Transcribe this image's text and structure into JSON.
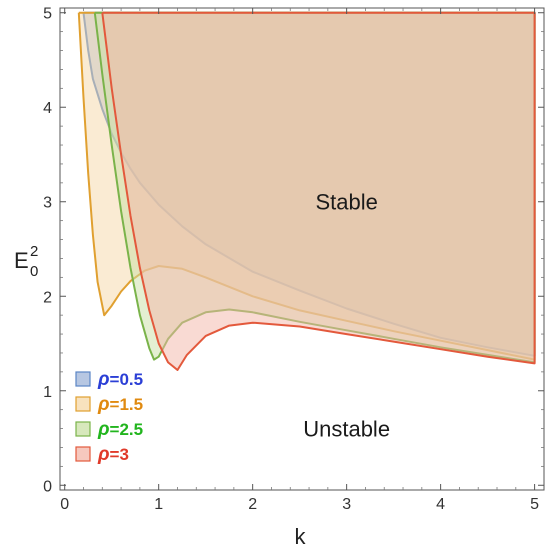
{
  "chart_data": {
    "type": "area",
    "title": "",
    "xlabel": "k",
    "ylabel": "E",
    "ylabel_sub": "0",
    "ylabel_sup": "2",
    "xlim": [
      -0.05,
      5.1
    ],
    "ylim": [
      -0.05,
      5.05
    ],
    "x_ticks": [
      0,
      1,
      2,
      3,
      4,
      5
    ],
    "y_ticks": [
      0,
      1,
      2,
      3,
      4,
      5
    ],
    "grid": false,
    "legend_position": "bottom-left",
    "annotations": [
      {
        "text": "Stable",
        "x": 3.0,
        "y": 3.0
      },
      {
        "text": "Unstable",
        "x": 3.0,
        "y": 0.6
      }
    ],
    "series": [
      {
        "name": "ρ=0.5",
        "legend_symbol": "ρ",
        "legend_value": "=0.5",
        "label_color": "#2b3fd6",
        "line_color": "#5b86c6",
        "fill_color": "#9fb4d8",
        "upper": [
          [
            0.2,
            5.0
          ],
          [
            5.0,
            5.0
          ]
        ],
        "lower": [
          [
            0.2,
            5.0
          ],
          [
            0.25,
            4.6
          ],
          [
            0.3,
            4.3
          ],
          [
            0.4,
            3.98
          ],
          [
            0.5,
            3.72
          ],
          [
            0.6,
            3.52
          ],
          [
            0.7,
            3.35
          ],
          [
            0.8,
            3.2
          ],
          [
            1.0,
            2.97
          ],
          [
            1.25,
            2.74
          ],
          [
            1.5,
            2.55
          ],
          [
            2.0,
            2.26
          ],
          [
            2.5,
            2.06
          ],
          [
            3.0,
            1.87
          ],
          [
            3.5,
            1.71
          ],
          [
            4.0,
            1.56
          ],
          [
            4.5,
            1.46
          ],
          [
            5.0,
            1.37
          ]
        ]
      },
      {
        "name": "ρ=1.5",
        "legend_symbol": "ρ",
        "legend_value": "=1.5",
        "label_color": "#e08a10",
        "line_color": "#e0a030",
        "fill_color": "#f5d8a8",
        "upper": [
          [
            0.15,
            5.0
          ],
          [
            5.0,
            5.0
          ]
        ],
        "lower": [
          [
            0.15,
            5.0
          ],
          [
            0.2,
            4.1
          ],
          [
            0.25,
            3.3
          ],
          [
            0.3,
            2.65
          ],
          [
            0.35,
            2.15
          ],
          [
            0.42,
            1.8
          ],
          [
            0.5,
            1.9
          ],
          [
            0.6,
            2.05
          ],
          [
            0.7,
            2.16
          ],
          [
            0.85,
            2.27
          ],
          [
            1.0,
            2.32
          ],
          [
            1.25,
            2.29
          ],
          [
            1.5,
            2.2
          ],
          [
            2.0,
            2.0
          ],
          [
            2.5,
            1.85
          ],
          [
            3.0,
            1.74
          ],
          [
            3.5,
            1.63
          ],
          [
            4.0,
            1.53
          ],
          [
            4.5,
            1.43
          ],
          [
            5.0,
            1.33
          ]
        ]
      },
      {
        "name": "ρ=2.5",
        "legend_symbol": "ρ",
        "legend_value": "=2.5",
        "label_color": "#22b51e",
        "line_color": "#7ab34a",
        "fill_color": "#c9e0a6",
        "upper": [
          [
            0.32,
            5.0
          ],
          [
            5.0,
            5.0
          ]
        ],
        "lower": [
          [
            0.32,
            5.0
          ],
          [
            0.4,
            4.35
          ],
          [
            0.5,
            3.6
          ],
          [
            0.6,
            2.9
          ],
          [
            0.7,
            2.3
          ],
          [
            0.8,
            1.8
          ],
          [
            0.9,
            1.45
          ],
          [
            0.95,
            1.33
          ],
          [
            1.0,
            1.36
          ],
          [
            1.1,
            1.55
          ],
          [
            1.25,
            1.72
          ],
          [
            1.5,
            1.83
          ],
          [
            1.75,
            1.86
          ],
          [
            2.0,
            1.83
          ],
          [
            2.5,
            1.73
          ],
          [
            3.0,
            1.64
          ],
          [
            3.5,
            1.55
          ],
          [
            4.0,
            1.46
          ],
          [
            4.5,
            1.38
          ],
          [
            5.0,
            1.3
          ]
        ]
      },
      {
        "name": "ρ=3",
        "legend_symbol": "ρ",
        "legend_value": "=3",
        "label_color": "#e03a2a",
        "line_color": "#e3593c",
        "fill_color": "#f3b5a8",
        "upper": [
          [
            0.4,
            5.0
          ],
          [
            5.0,
            5.0
          ]
        ],
        "lower": [
          [
            0.4,
            5.0
          ],
          [
            0.5,
            4.2
          ],
          [
            0.6,
            3.5
          ],
          [
            0.7,
            2.85
          ],
          [
            0.8,
            2.3
          ],
          [
            0.9,
            1.85
          ],
          [
            1.0,
            1.5
          ],
          [
            1.1,
            1.3
          ],
          [
            1.2,
            1.22
          ],
          [
            1.3,
            1.38
          ],
          [
            1.5,
            1.58
          ],
          [
            1.75,
            1.69
          ],
          [
            2.0,
            1.72
          ],
          [
            2.5,
            1.68
          ],
          [
            3.0,
            1.6
          ],
          [
            3.5,
            1.52
          ],
          [
            4.0,
            1.44
          ],
          [
            4.5,
            1.36
          ],
          [
            5.0,
            1.29
          ]
        ]
      }
    ]
  }
}
